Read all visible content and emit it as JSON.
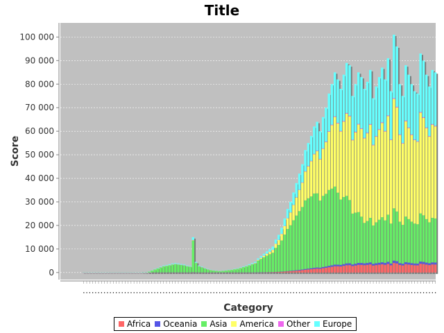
{
  "chart_data": {
    "type": "bar",
    "stacked": true,
    "title": "Title",
    "xlabel": "Category",
    "ylabel": "Score",
    "ylim": [
      -3000,
      106000
    ],
    "yticks": [
      0,
      10000,
      20000,
      30000,
      40000,
      50000,
      60000,
      70000,
      80000,
      90000,
      100000
    ],
    "ytick_labels": [
      "0",
      "10 000",
      "20 000",
      "30 000",
      "40 000",
      "50 000",
      "60 000",
      "70 000",
      "80 000",
      "90 000",
      "100 000"
    ],
    "grid": true,
    "legend_position": "bottom",
    "category_count": 120,
    "totals": [
      150,
      150,
      150,
      150,
      150,
      150,
      150,
      150,
      150,
      150,
      150,
      150,
      150,
      150,
      150,
      150,
      150,
      150,
      150,
      150,
      200,
      250,
      500,
      1000,
      1500,
      2000,
      2500,
      3000,
      3200,
      3500,
      3800,
      4000,
      3800,
      3600,
      3400,
      3000,
      2800,
      15000,
      4500,
      3000,
      2500,
      2000,
      1500,
      1200,
      1000,
      900,
      800,
      900,
      1000,
      1200,
      1400,
      1600,
      1800,
      2200,
      2600,
      3000,
      3500,
      4000,
      4500,
      6000,
      7000,
      8000,
      9000,
      10000,
      11000,
      14000,
      16000,
      19000,
      23000,
      27000,
      30000,
      34000,
      38000,
      42000,
      46000,
      52000,
      55000,
      58000,
      62000,
      64000,
      60000,
      66000,
      70000,
      76000,
      80000,
      85000,
      82000,
      78000,
      84000,
      89000,
      88000,
      75000,
      80000,
      85000,
      83000,
      78000,
      81000,
      86000,
      74000,
      79000,
      83000,
      87000,
      82000,
      91000,
      77000,
      101000,
      96000,
      80000,
      75000,
      88000,
      84000,
      80000,
      77000,
      76000,
      93000,
      90000,
      84000,
      79000,
      86000,
      85000
    ],
    "series": [
      {
        "name": "Africa",
        "color": "#ff6666"
      },
      {
        "name": "Oceania",
        "color": "#5555e6"
      },
      {
        "name": "Asia",
        "color": "#66ee66"
      },
      {
        "name": "America",
        "color": "#ffff66"
      },
      {
        "name": "Other",
        "color": "#ee66ee"
      },
      {
        "name": "Europe",
        "color": "#66ffff"
      }
    ]
  }
}
